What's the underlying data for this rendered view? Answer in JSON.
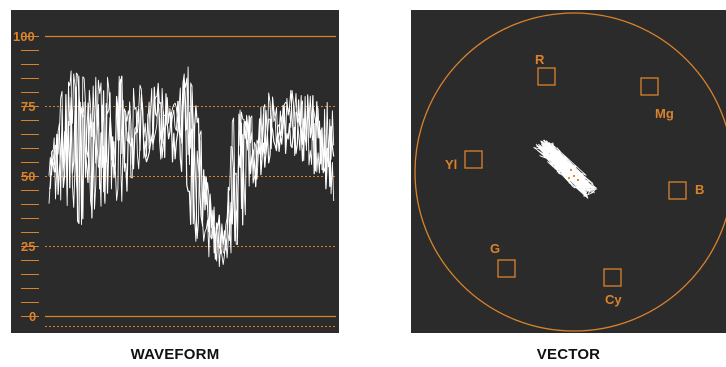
{
  "colors": {
    "panel_background": "#2b2b2b",
    "graticule": "#d9822b",
    "trace": "#ffffff",
    "caption_text": "#111111"
  },
  "waveform": {
    "caption": "WAVEFORM",
    "scale_labels": [
      "100",
      "75",
      "50",
      "25",
      "0"
    ]
  },
  "vector": {
    "caption": "VECTOR",
    "targets": [
      {
        "id": "r",
        "label": "R"
      },
      {
        "id": "mg",
        "label": "Mg"
      },
      {
        "id": "yl",
        "label": "Yl"
      },
      {
        "id": "b",
        "label": "B"
      },
      {
        "id": "g",
        "label": "G"
      },
      {
        "id": "cy",
        "label": "Cy"
      }
    ]
  }
}
